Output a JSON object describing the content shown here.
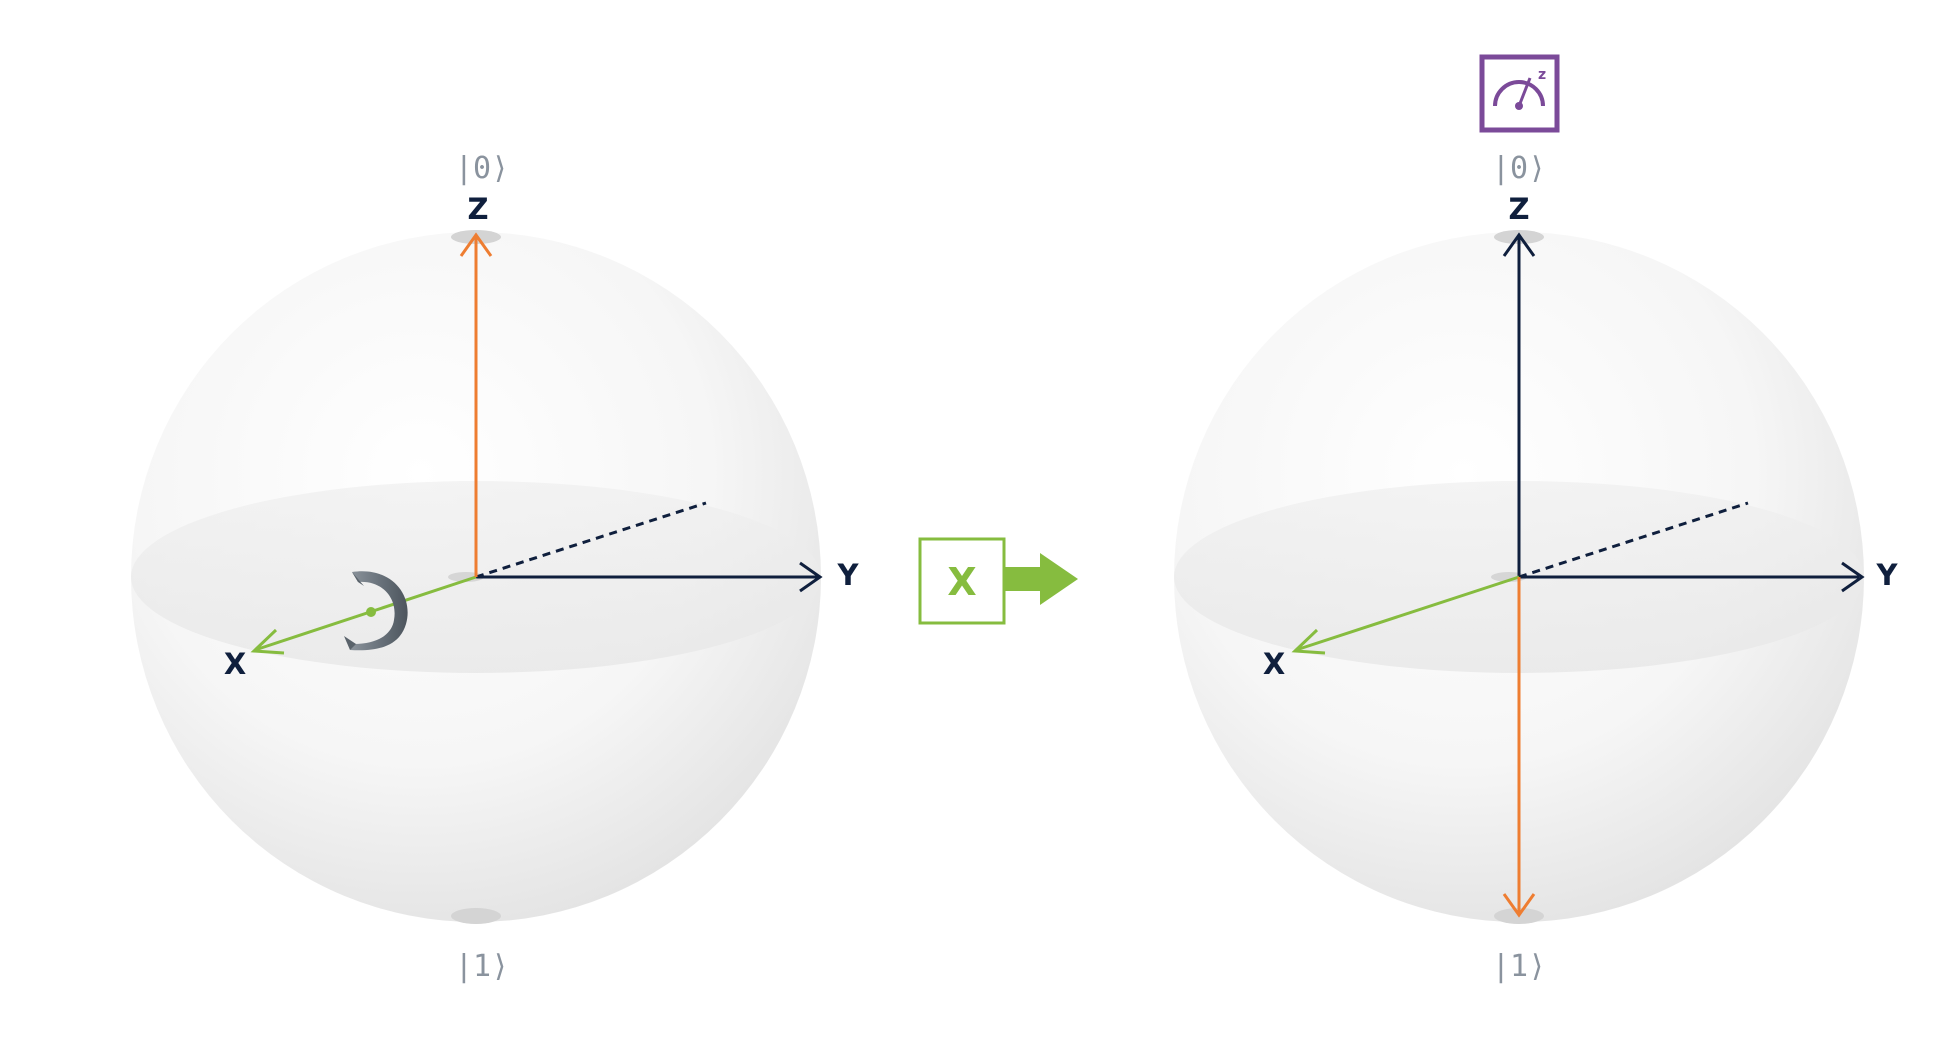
{
  "colors": {
    "state_vector": "#ee7d31",
    "x_axis": "#86bc3f",
    "axes": "#0f1f3d",
    "gate": "#86bc3f",
    "measurement": "#7b4a99",
    "ket_text": "#8a939e"
  },
  "left_sphere": {
    "ket_top": "|0⟩",
    "ket_bottom": "|1⟩",
    "z_label": "Z",
    "y_label": "Y",
    "x_label": "X",
    "state": "|0⟩",
    "rotation_icon": "rotation-arrow-icon"
  },
  "gate": {
    "label": "X",
    "arrow_icon": "right-arrow-icon"
  },
  "right_sphere": {
    "ket_top": "|0⟩",
    "ket_bottom": "|1⟩",
    "z_label": "Z",
    "y_label": "Y",
    "x_label": "X",
    "state": "|1⟩",
    "measurement_icon": "z-measurement-gauge-icon"
  }
}
